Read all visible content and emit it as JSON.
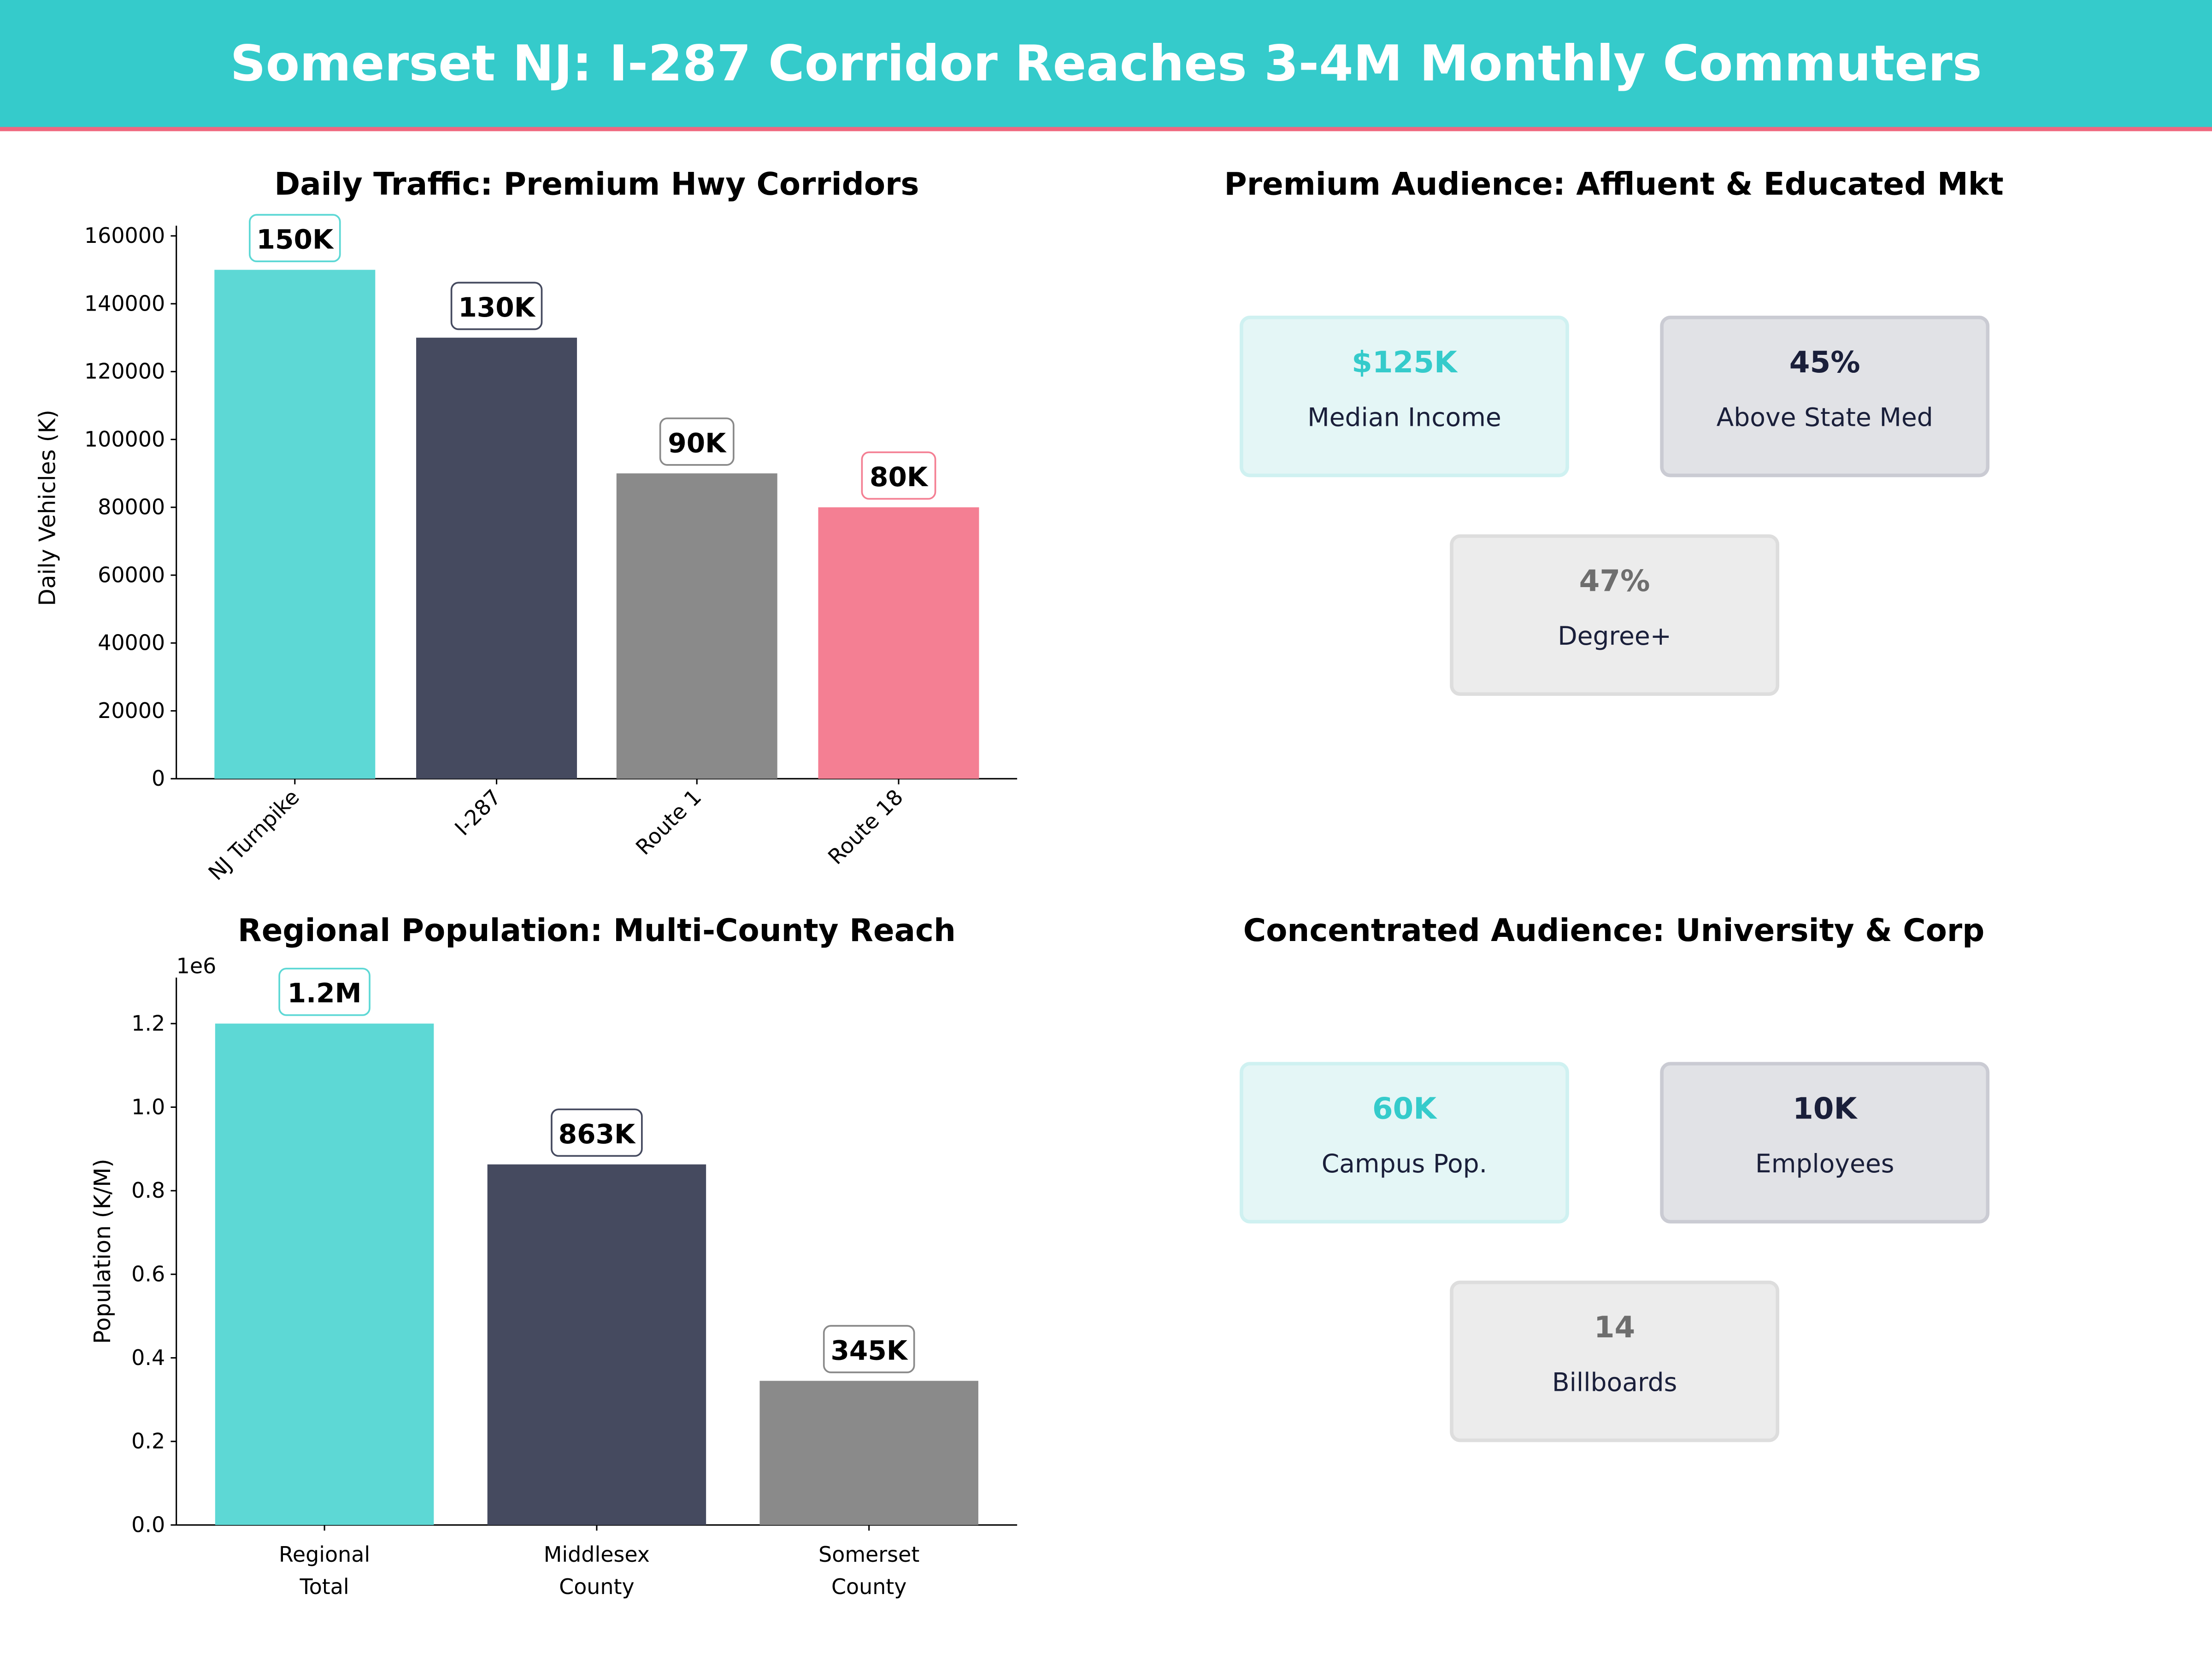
{
  "header": {
    "title": "Somerset NJ: I-287 Corridor Reaches 3-4M Monthly Commuters",
    "bg": "#35CBCB",
    "accent_line": "#F0687F"
  },
  "chart_data": [
    {
      "type": "bar",
      "title": "Daily Traffic: Premium Hwy Corridors",
      "ylabel": "Daily Vehicles (K)",
      "xlabel": "",
      "categories": [
        "NJ Turnpike",
        "I-287",
        "Route 1",
        "Route 18"
      ],
      "values": [
        150000,
        130000,
        90000,
        80000
      ],
      "data_labels": [
        "150K",
        "130K",
        "90K",
        "80K"
      ],
      "colors": [
        "#5DD8D5",
        "#454A5F",
        "#8A8A8A",
        "#F47F93"
      ],
      "yticks": [
        0,
        20000,
        40000,
        60000,
        80000,
        100000,
        120000,
        140000,
        160000
      ],
      "ylim": [
        0,
        163000
      ],
      "xtick_rotation": 45,
      "grid": false
    },
    {
      "type": "bar",
      "title": "Regional Population: Multi-County Reach",
      "ylabel": "Population (K/M)",
      "xlabel": "",
      "offset_text": "1e6",
      "categories": [
        [
          "Regional",
          "Total"
        ],
        [
          "Middlesex",
          "County"
        ],
        [
          "Somerset",
          "County"
        ]
      ],
      "values": [
        1200000,
        863000,
        345000
      ],
      "data_labels": [
        "1.2M",
        "863K",
        "345K"
      ],
      "colors": [
        "#5DD8D5",
        "#454A5F",
        "#8A8A8A"
      ],
      "yticks": [
        0,
        0.2,
        0.4,
        0.6,
        0.8,
        1.0,
        1.2
      ],
      "ytick_labels": [
        "0.0",
        "0.2",
        "0.4",
        "0.6",
        "0.8",
        "1.0",
        "1.2"
      ],
      "ylim": [
        0,
        1310000
      ],
      "grid": false
    }
  ],
  "panels": [
    {
      "title": "Premium Audience: Affluent & Educated Mkt",
      "cards": [
        {
          "value": "$125K",
          "label": "Median Income"
        },
        {
          "value": "45%",
          "label": "Above State Med"
        },
        {
          "value": "47%",
          "label": "Degree+"
        }
      ]
    },
    {
      "title": "Concentrated Audience: University & Corp",
      "cards": [
        {
          "value": "60K",
          "label": "Campus Pop."
        },
        {
          "value": "10K",
          "label": "Employees"
        },
        {
          "value": "14",
          "label": "Billboards"
        }
      ]
    }
  ],
  "card_styles": [
    {
      "bg": "#E4F6F6",
      "border": "#CFF1F1",
      "value_color": "#35CBCB"
    },
    {
      "bg": "#E1E2E6",
      "border": "#CACBD3",
      "value_color": "#1A1F3A"
    },
    {
      "bg": "#ECECEC",
      "border": "#DDDDDD",
      "value_color": "#6E6E6E"
    }
  ]
}
